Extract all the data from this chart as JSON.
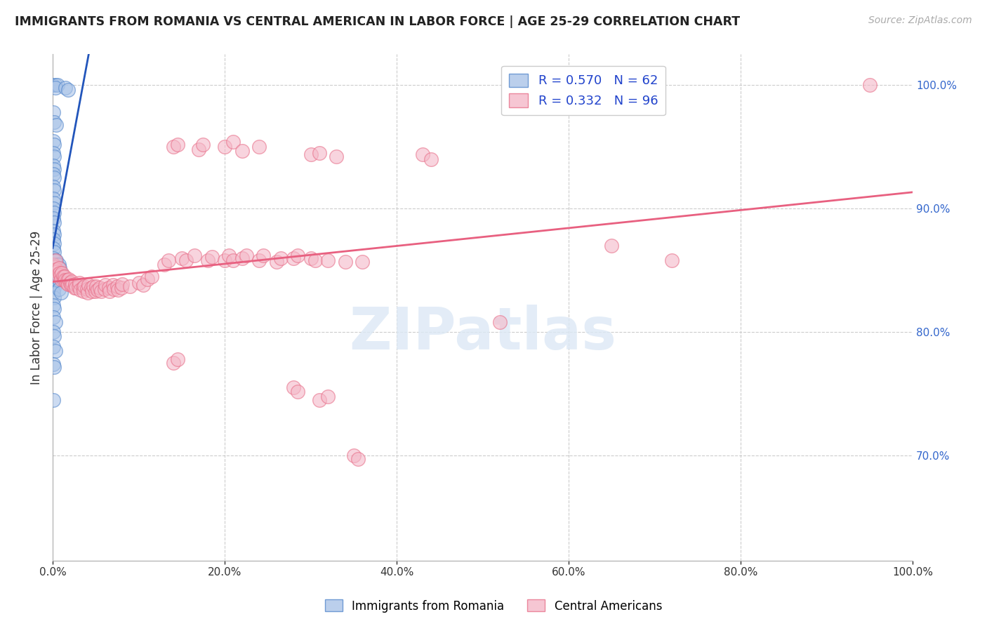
{
  "title": "IMMIGRANTS FROM ROMANIA VS CENTRAL AMERICAN IN LABOR FORCE | AGE 25-29 CORRELATION CHART",
  "source": "Source: ZipAtlas.com",
  "ylabel": "In Labor Force | Age 25-29",
  "xmin": 0.0,
  "xmax": 1.0,
  "ymin": 0.615,
  "ymax": 1.025,
  "xtick_labels": [
    "0.0%",
    "20.0%",
    "40.0%",
    "60.0%",
    "80.0%",
    "100.0%"
  ],
  "xtick_vals": [
    0.0,
    0.2,
    0.4,
    0.6,
    0.8,
    1.0
  ],
  "ytick_right_labels": [
    "100.0%",
    "90.0%",
    "80.0%",
    "70.0%"
  ],
  "ytick_right_vals": [
    1.0,
    0.9,
    0.8,
    0.7
  ],
  "romania_color": "#aac4e8",
  "central_color": "#f4b8c8",
  "romania_edge_color": "#5588cc",
  "central_edge_color": "#e8708a",
  "romania_line_color": "#2255bb",
  "central_line_color": "#e86080",
  "romania_points": [
    [
      0.0,
      1.0
    ],
    [
      0.003,
      1.0
    ],
    [
      0.006,
      1.0
    ],
    [
      0.003,
      0.998
    ],
    [
      0.001,
      0.978
    ],
    [
      0.002,
      0.97
    ],
    [
      0.004,
      0.968
    ],
    [
      0.001,
      0.955
    ],
    [
      0.002,
      0.952
    ],
    [
      0.001,
      0.945
    ],
    [
      0.002,
      0.942
    ],
    [
      0.001,
      0.935
    ],
    [
      0.002,
      0.932
    ],
    [
      0.001,
      0.928
    ],
    [
      0.002,
      0.925
    ],
    [
      0.001,
      0.918
    ],
    [
      0.002,
      0.915
    ],
    [
      0.001,
      0.908
    ],
    [
      0.002,
      0.905
    ],
    [
      0.001,
      0.9
    ],
    [
      0.002,
      0.897
    ],
    [
      0.001,
      0.892
    ],
    [
      0.002,
      0.889
    ],
    [
      0.001,
      0.882
    ],
    [
      0.002,
      0.879
    ],
    [
      0.001,
      0.875
    ],
    [
      0.002,
      0.872
    ],
    [
      0.001,
      0.868
    ],
    [
      0.002,
      0.865
    ],
    [
      0.001,
      0.86
    ],
    [
      0.002,
      0.858
    ],
    [
      0.001,
      0.854
    ],
    [
      0.002,
      0.851
    ],
    [
      0.001,
      0.846
    ],
    [
      0.002,
      0.843
    ],
    [
      0.001,
      0.838
    ],
    [
      0.002,
      0.836
    ],
    [
      0.001,
      0.832
    ],
    [
      0.002,
      0.828
    ],
    [
      0.001,
      0.822
    ],
    [
      0.002,
      0.819
    ],
    [
      0.001,
      0.812
    ],
    [
      0.003,
      0.808
    ],
    [
      0.001,
      0.8
    ],
    [
      0.002,
      0.797
    ],
    [
      0.001,
      0.788
    ],
    [
      0.003,
      0.785
    ],
    [
      0.001,
      0.774
    ],
    [
      0.002,
      0.772
    ],
    [
      0.004,
      0.858
    ],
    [
      0.005,
      0.855
    ],
    [
      0.004,
      0.845
    ],
    [
      0.005,
      0.842
    ],
    [
      0.007,
      0.855
    ],
    [
      0.008,
      0.852
    ],
    [
      0.007,
      0.842
    ],
    [
      0.01,
      0.848
    ],
    [
      0.007,
      0.835
    ],
    [
      0.01,
      0.832
    ],
    [
      0.015,
      0.998
    ],
    [
      0.018,
      0.996
    ],
    [
      0.001,
      0.745
    ]
  ],
  "central_points": [
    [
      0.001,
      0.855
    ],
    [
      0.002,
      0.853
    ],
    [
      0.003,
      0.858
    ],
    [
      0.004,
      0.851
    ],
    [
      0.005,
      0.849
    ],
    [
      0.006,
      0.847
    ],
    [
      0.007,
      0.852
    ],
    [
      0.008,
      0.848
    ],
    [
      0.009,
      0.846
    ],
    [
      0.01,
      0.843
    ],
    [
      0.011,
      0.848
    ],
    [
      0.012,
      0.845
    ],
    [
      0.013,
      0.842
    ],
    [
      0.014,
      0.845
    ],
    [
      0.015,
      0.842
    ],
    [
      0.016,
      0.84
    ],
    [
      0.017,
      0.842
    ],
    [
      0.018,
      0.839
    ],
    [
      0.019,
      0.843
    ],
    [
      0.02,
      0.84
    ],
    [
      0.021,
      0.838
    ],
    [
      0.022,
      0.841
    ],
    [
      0.023,
      0.838
    ],
    [
      0.025,
      0.836
    ],
    [
      0.026,
      0.839
    ],
    [
      0.027,
      0.836
    ],
    [
      0.03,
      0.837
    ],
    [
      0.031,
      0.84
    ],
    [
      0.032,
      0.834
    ],
    [
      0.035,
      0.836
    ],
    [
      0.036,
      0.833
    ],
    [
      0.037,
      0.837
    ],
    [
      0.04,
      0.835
    ],
    [
      0.041,
      0.832
    ],
    [
      0.042,
      0.838
    ],
    [
      0.045,
      0.836
    ],
    [
      0.046,
      0.833
    ],
    [
      0.047,
      0.837
    ],
    [
      0.05,
      0.833
    ],
    [
      0.051,
      0.837
    ],
    [
      0.052,
      0.834
    ],
    [
      0.055,
      0.836
    ],
    [
      0.056,
      0.833
    ],
    [
      0.06,
      0.835
    ],
    [
      0.061,
      0.838
    ],
    [
      0.065,
      0.836
    ],
    [
      0.066,
      0.833
    ],
    [
      0.07,
      0.838
    ],
    [
      0.071,
      0.835
    ],
    [
      0.075,
      0.837
    ],
    [
      0.076,
      0.834
    ],
    [
      0.08,
      0.836
    ],
    [
      0.081,
      0.839
    ],
    [
      0.09,
      0.837
    ],
    [
      0.1,
      0.84
    ],
    [
      0.105,
      0.838
    ],
    [
      0.11,
      0.843
    ],
    [
      0.115,
      0.845
    ],
    [
      0.13,
      0.855
    ],
    [
      0.135,
      0.858
    ],
    [
      0.15,
      0.86
    ],
    [
      0.155,
      0.858
    ],
    [
      0.165,
      0.862
    ],
    [
      0.18,
      0.858
    ],
    [
      0.185,
      0.861
    ],
    [
      0.2,
      0.858
    ],
    [
      0.205,
      0.862
    ],
    [
      0.21,
      0.858
    ],
    [
      0.22,
      0.86
    ],
    [
      0.225,
      0.862
    ],
    [
      0.24,
      0.858
    ],
    [
      0.245,
      0.862
    ],
    [
      0.26,
      0.857
    ],
    [
      0.265,
      0.86
    ],
    [
      0.28,
      0.86
    ],
    [
      0.285,
      0.862
    ],
    [
      0.3,
      0.86
    ],
    [
      0.305,
      0.858
    ],
    [
      0.32,
      0.858
    ],
    [
      0.34,
      0.857
    ],
    [
      0.36,
      0.857
    ],
    [
      0.14,
      0.95
    ],
    [
      0.145,
      0.952
    ],
    [
      0.17,
      0.948
    ],
    [
      0.175,
      0.952
    ],
    [
      0.2,
      0.95
    ],
    [
      0.21,
      0.954
    ],
    [
      0.22,
      0.947
    ],
    [
      0.24,
      0.95
    ],
    [
      0.3,
      0.944
    ],
    [
      0.31,
      0.945
    ],
    [
      0.33,
      0.942
    ],
    [
      0.43,
      0.944
    ],
    [
      0.44,
      0.94
    ],
    [
      0.14,
      0.775
    ],
    [
      0.145,
      0.778
    ],
    [
      0.28,
      0.755
    ],
    [
      0.285,
      0.752
    ],
    [
      0.31,
      0.745
    ],
    [
      0.32,
      0.748
    ],
    [
      0.35,
      0.7
    ],
    [
      0.355,
      0.697
    ],
    [
      0.52,
      0.808
    ],
    [
      0.65,
      0.87
    ],
    [
      0.72,
      0.858
    ],
    [
      0.95,
      1.0
    ]
  ]
}
